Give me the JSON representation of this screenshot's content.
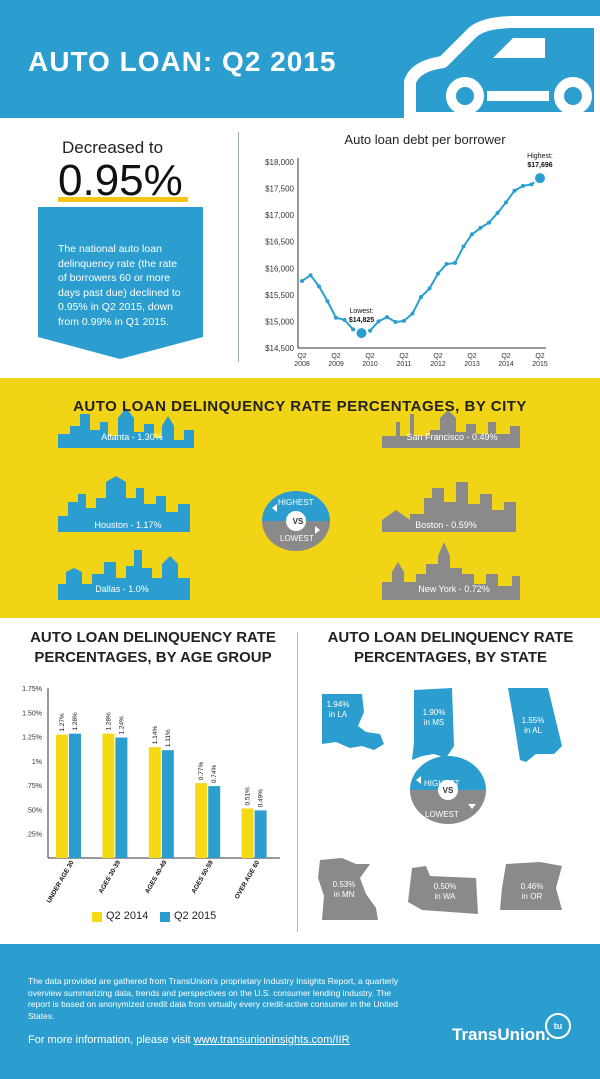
{
  "header": {
    "title": "AUTO LOAN: Q2 2015"
  },
  "delinquency": {
    "label": "Decreased to",
    "value": "0.95%",
    "description": "The national auto loan delinquency rate (the rate of borrowers 60 or more days past due) declined to 0.95% in Q2 2015, down from 0.99% in Q1 2015."
  },
  "debt_chart": {
    "title": "Auto loan debt per borrower",
    "y_ticks": [
      "$18,000",
      "$17,500",
      "$17,000",
      "$16,500",
      "$16,000",
      "$15,500",
      "$15,000",
      "$14,500"
    ],
    "x_ticks": [
      [
        "Q2",
        "2008"
      ],
      [
        "Q2",
        "2009"
      ],
      [
        "Q2",
        "2010"
      ],
      [
        "Q2",
        "2011"
      ],
      [
        "Q2",
        "2012"
      ],
      [
        "Q2",
        "2013"
      ],
      [
        "Q2",
        "2014"
      ],
      [
        "Q2",
        "2015"
      ]
    ],
    "highest_label": "Highest:",
    "highest_value": "$17,696",
    "lowest_label": "Lowest:",
    "lowest_value": "$14,825"
  },
  "city": {
    "title": "AUTO LOAN DELINQUENCY RATE PERCENTAGES, BY CITY",
    "highest": [
      {
        "label": "Atlanta - 1.30%"
      },
      {
        "label": "Houston - 1.17%"
      },
      {
        "label": "Dallas - 1.0%"
      }
    ],
    "lowest": [
      {
        "label": "San Francisco - 0.49%"
      },
      {
        "label": "Boston - 0.59%"
      },
      {
        "label": "New York - 0.72%"
      }
    ],
    "badge_highest": "HIGHEST",
    "badge_vs": "VS",
    "badge_lowest": "LOWEST"
  },
  "age": {
    "title": "AUTO LOAN DELINQUENCY RATE PERCENTAGES, BY AGE GROUP",
    "legend_2014": "Q2 2014",
    "legend_2015": "Q2 2015"
  },
  "state": {
    "title": "AUTO LOAN DELINQUENCY RATE PERCENTAGES, BY STATE",
    "highest": [
      {
        "pct": "1.94%",
        "where": "in LA"
      },
      {
        "pct": "1.90%",
        "where": "in MS"
      },
      {
        "pct": "1.55%",
        "where": "in AL"
      }
    ],
    "lowest": [
      {
        "pct": "0.53%",
        "where": "in MN"
      },
      {
        "pct": "0.50%",
        "where": "in WA"
      },
      {
        "pct": "0.46%",
        "where": "in OR"
      }
    ],
    "badge_highest": "HIGHEST",
    "badge_vs": "VS",
    "badge_lowest": "LOWEST"
  },
  "footer": {
    "text": "The data provided are gathered from TransUnion's proprietary Industry Insights Report, a quarterly overview summarizing data, trends and perspectives on the U.S. consumer lending industry. The report is based on anonymized credit data from virtually every credit-active consumer in the United States.",
    "more_prefix": "For more information, please visit ",
    "more_link": "www.transunioninsights.com/IIR",
    "brand": "TransUnion.",
    "badge": "tu"
  },
  "colors": {
    "blue": "#2b9ecf",
    "yellow": "#f1d416",
    "gray": "#8a8a8a"
  },
  "chart_data": [
    {
      "type": "line",
      "title": "Auto loan debt per borrower",
      "ylim": [
        14500,
        18000
      ],
      "x": [
        0,
        0.25,
        0.5,
        0.75,
        1,
        1.25,
        1.5,
        1.75,
        2,
        2.25,
        2.5,
        2.75,
        3,
        3.25,
        3.5,
        3.75,
        4,
        4.25,
        4.5,
        4.75,
        5,
        5.25,
        5.5,
        5.75,
        6,
        6.25,
        6.5,
        6.75,
        7
      ],
      "values": [
        15760,
        15870,
        15660,
        15380,
        15070,
        15030,
        14850,
        14780,
        14825,
        15000,
        15080,
        14990,
        15010,
        15150,
        15460,
        15620,
        15900,
        16080,
        16100,
        16410,
        16640,
        16760,
        16860,
        17040,
        17240,
        17460,
        17550,
        17580,
        17696
      ],
      "x_tick_labels": [
        "Q2 2008",
        "Q2 2009",
        "Q2 2010",
        "Q2 2011",
        "Q2 2012",
        "Q2 2013",
        "Q2 2014",
        "Q2 2015"
      ],
      "annotations": [
        {
          "text": "Highest: $17,696"
        },
        {
          "text": "Lowest: $14,825"
        }
      ]
    },
    {
      "type": "bar",
      "title": "AUTO LOAN DELINQUENCY RATE PERCENTAGES, BY AGE GROUP",
      "categories": [
        "UNDER AGE 30",
        "AGES 30-39",
        "AGES 40-49",
        "AGES 50-59",
        "OVER AGE 60"
      ],
      "series": [
        {
          "name": "Q2 2014",
          "values": [
            1.27,
            1.28,
            1.14,
            0.77,
            0.51
          ],
          "labels": [
            "1.27%",
            "1.28%",
            "1.14%",
            "0.77%",
            "0.51%"
          ]
        },
        {
          "name": "Q2 2015",
          "values": [
            1.28,
            1.24,
            1.11,
            0.74,
            0.49
          ],
          "labels": [
            "1.28%",
            "1.24%",
            "1.11%",
            "0.74%",
            "0.49%"
          ]
        }
      ],
      "y_ticks": [
        "1.75%",
        "1.50%",
        "1.25%",
        "1%",
        ".75%",
        ".50%",
        ".25%"
      ],
      "ylim": [
        0,
        1.75
      ]
    }
  ]
}
